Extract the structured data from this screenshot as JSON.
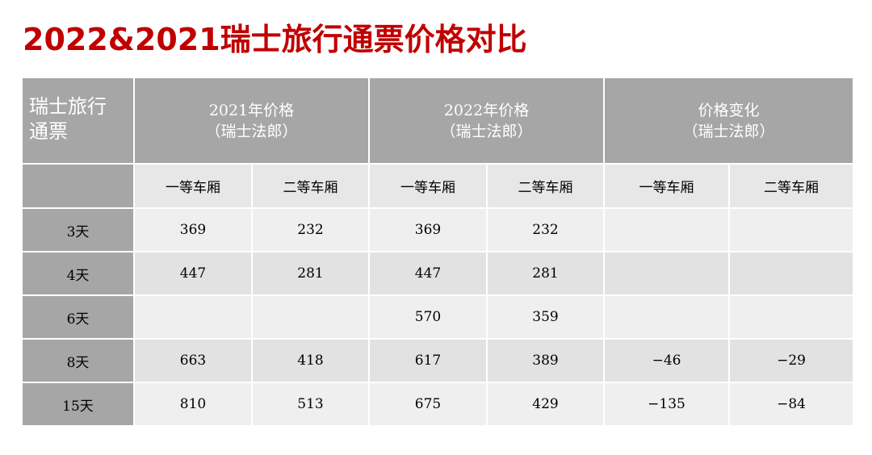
{
  "title": "2022&2021瑞士旅行通票价格对比",
  "header": {
    "corner_line1": "瑞士旅行",
    "corner_line2": "通票",
    "groups": [
      {
        "line1": "2021年价格",
        "line2": "（瑞士法郎）"
      },
      {
        "line1": "2022年价格",
        "line2": "（瑞士法郎）"
      },
      {
        "line1": "价格变化",
        "line2": "（瑞士法郎）"
      }
    ],
    "subheaders": [
      "一等车厢",
      "二等车厢",
      "一等车厢",
      "二等车厢",
      "一等车厢",
      "二等车厢"
    ]
  },
  "rows": [
    {
      "label": "3天",
      "cells": [
        "369",
        "232",
        "369",
        "232",
        "",
        ""
      ]
    },
    {
      "label": "4天",
      "cells": [
        "447",
        "281",
        "447",
        "281",
        "",
        ""
      ]
    },
    {
      "label": "6天",
      "cells": [
        "",
        "",
        "570",
        "359",
        "",
        ""
      ]
    },
    {
      "label": "8天",
      "cells": [
        "663",
        "418",
        "617",
        "389",
        "−46",
        "−29"
      ]
    },
    {
      "label": "15天",
      "cells": [
        "810",
        "513",
        "675",
        "429",
        "−135",
        "−84"
      ]
    }
  ],
  "colors": {
    "title": "#c00000",
    "header_fill": "#a6a6a6",
    "subheader_fill": "#e7e7e7",
    "row_light": "#efefef",
    "row_dark": "#e2e2e2"
  }
}
